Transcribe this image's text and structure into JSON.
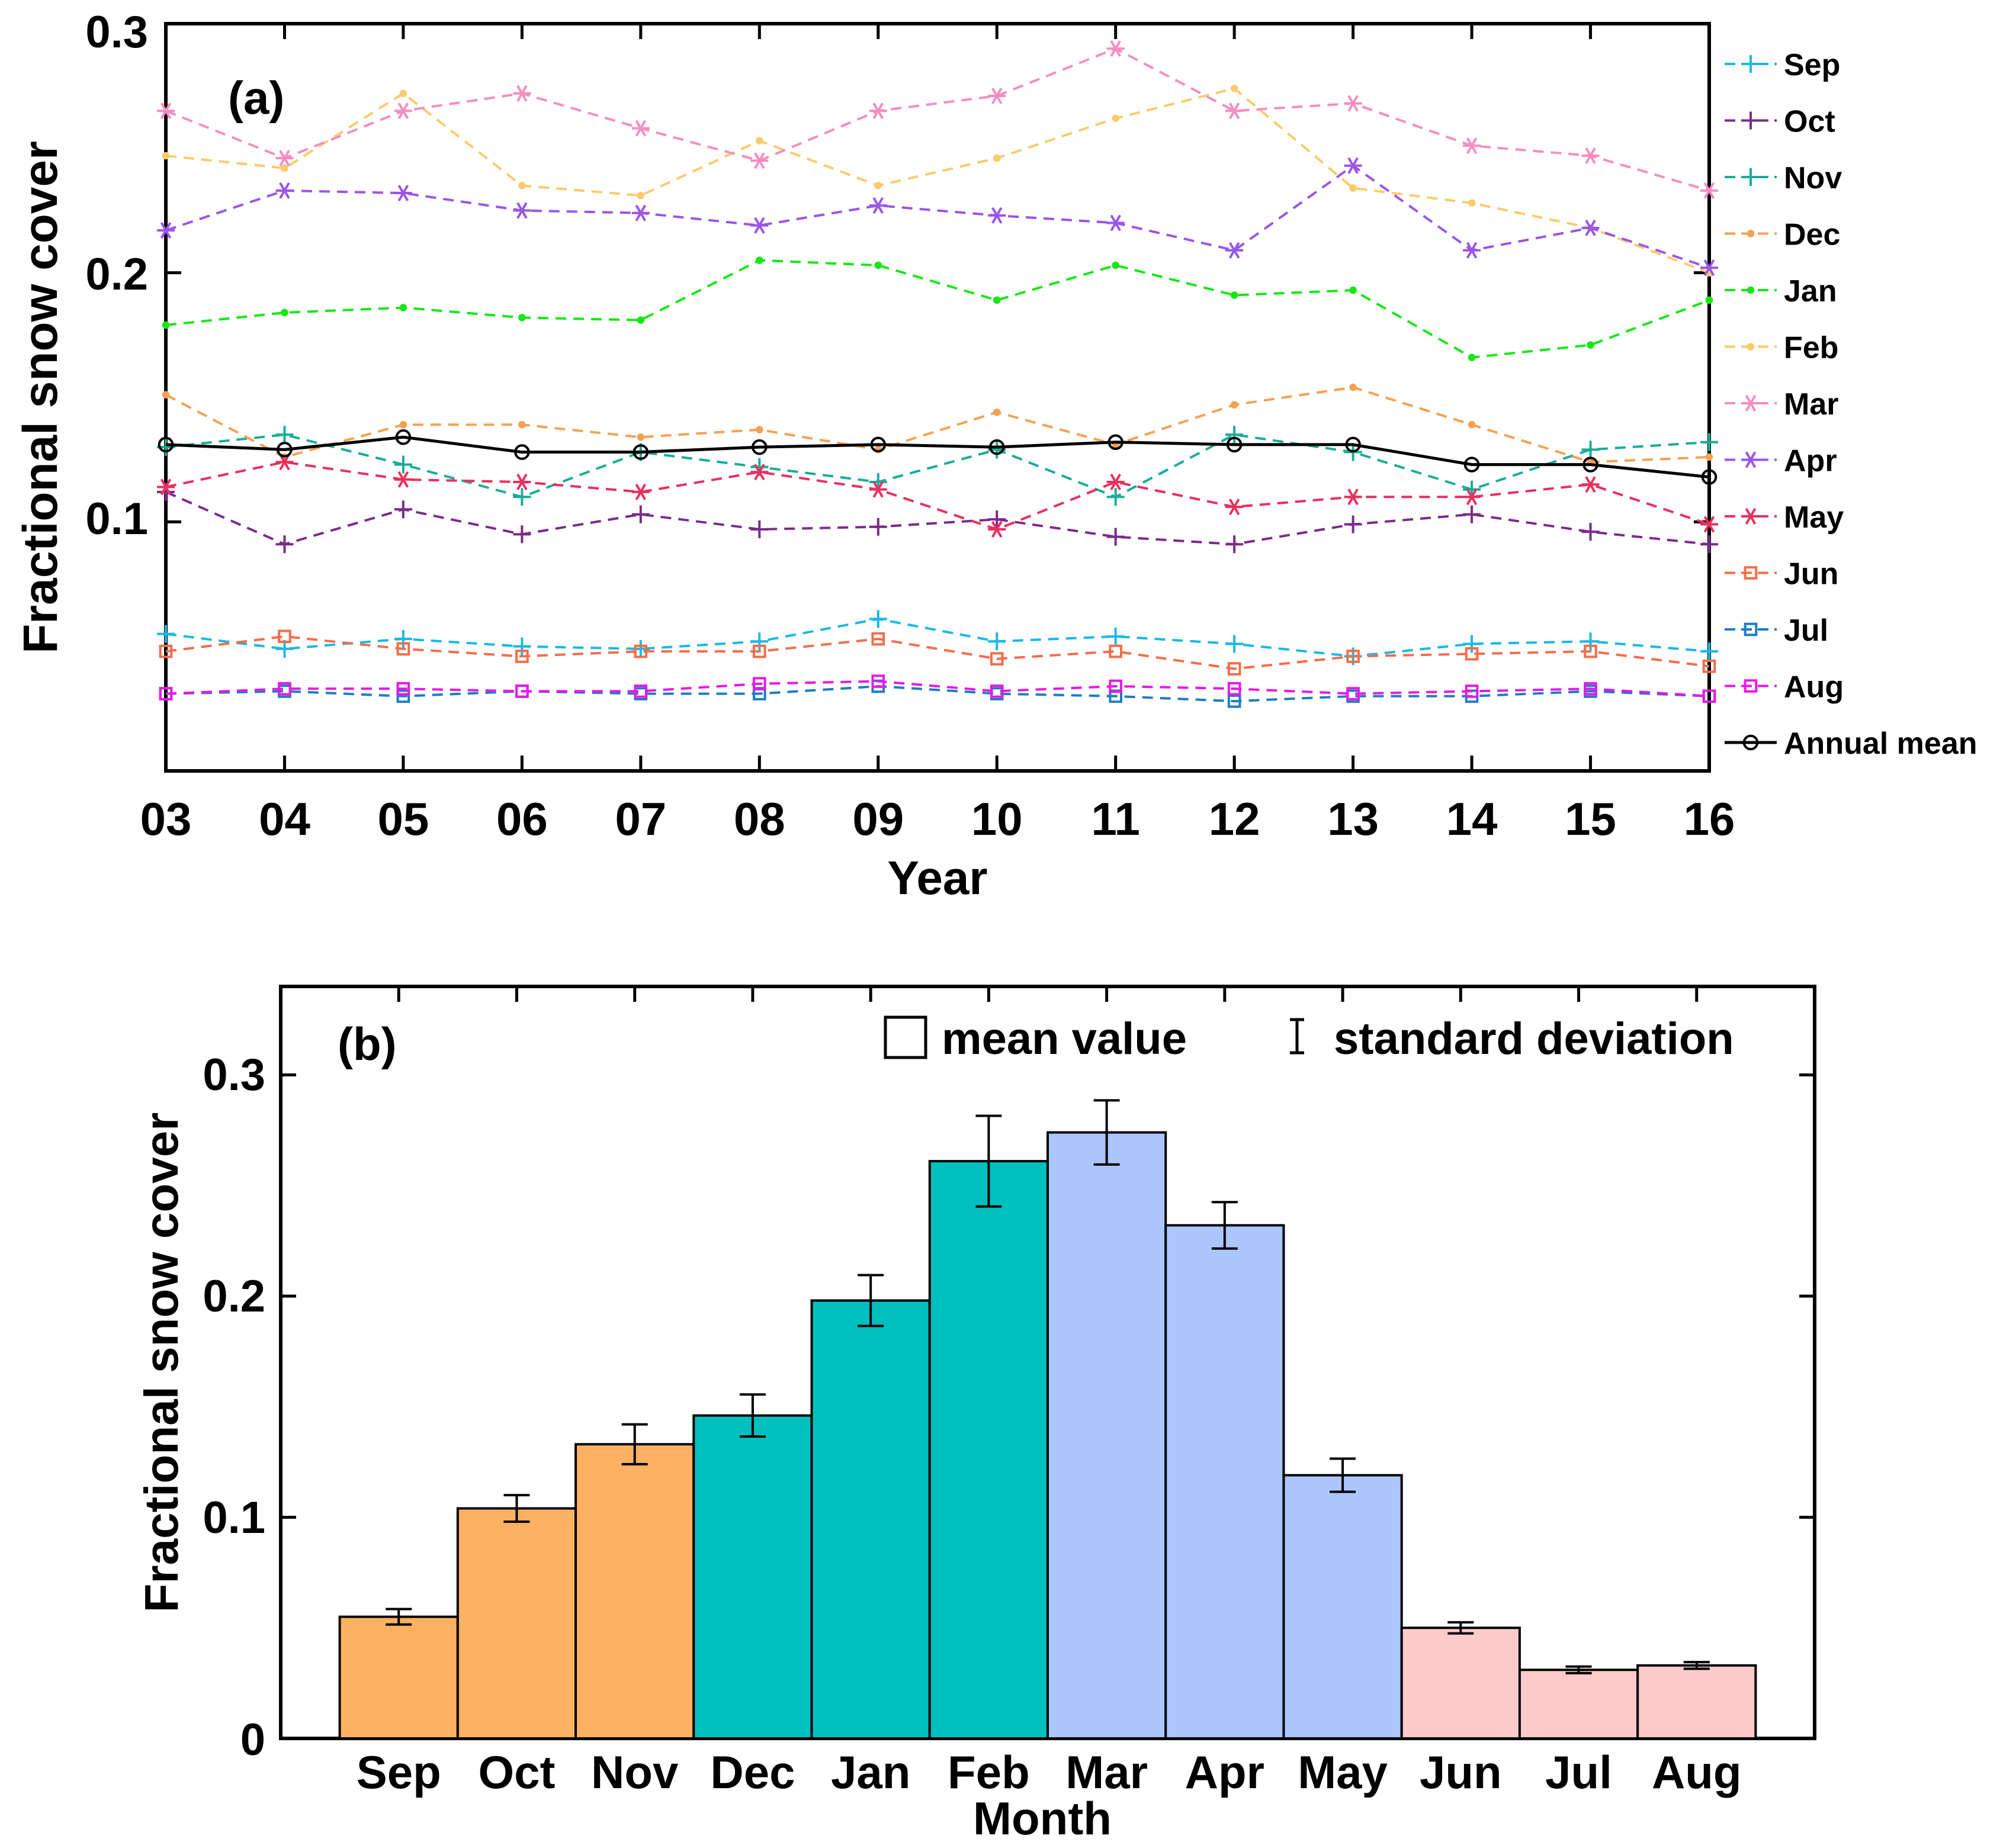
{
  "chart_data": [
    {
      "type": "line",
      "panel_label": "(a)",
      "xlabel": "Year",
      "ylabel": "Fractional snow cover",
      "ylim": [
        0,
        0.3
      ],
      "yticks": [
        0.1,
        0.2,
        0.3
      ],
      "ytick_labels": [
        "0.1",
        "0.2",
        "0.3"
      ],
      "x": [
        3,
        4,
        5,
        6,
        7,
        8,
        9,
        10,
        11,
        12,
        13,
        14,
        15,
        16
      ],
      "x_tick_labels": [
        "03",
        "04",
        "05",
        "06",
        "07",
        "08",
        "09",
        "10",
        "11",
        "12",
        "13",
        "14",
        "15",
        "16"
      ],
      "legend_position": "right outside",
      "series": [
        {
          "name": "Sep",
          "color": "#1ab8e6",
          "marker": "plus",
          "dashed": true,
          "values": [
            0.055,
            0.049,
            0.053,
            0.05,
            0.049,
            0.052,
            0.061,
            0.052,
            0.054,
            0.051,
            0.046,
            0.051,
            0.052,
            0.048
          ]
        },
        {
          "name": "Oct",
          "color": "#7b2a8c",
          "marker": "plus",
          "dashed": true,
          "values": [
            0.112,
            0.091,
            0.105,
            0.095,
            0.103,
            0.097,
            0.098,
            0.101,
            0.094,
            0.091,
            0.099,
            0.103,
            0.096,
            0.091
          ]
        },
        {
          "name": "Nov",
          "color": "#18ad96",
          "marker": "plus",
          "dashed": true,
          "values": [
            0.13,
            0.135,
            0.123,
            0.11,
            0.128,
            0.122,
            0.116,
            0.129,
            0.11,
            0.135,
            0.128,
            0.113,
            0.129,
            0.132
          ]
        },
        {
          "name": "Dec",
          "color": "#f5a153",
          "marker": "dot",
          "dashed": true,
          "values": [
            0.151,
            0.126,
            0.139,
            0.139,
            0.134,
            0.137,
            0.129,
            0.144,
            0.131,
            0.147,
            0.154,
            0.139,
            0.124,
            0.126
          ]
        },
        {
          "name": "Jan",
          "color": "#19e619",
          "marker": "dot",
          "dashed": true,
          "values": [
            0.179,
            0.184,
            0.186,
            0.182,
            0.181,
            0.205,
            0.203,
            0.189,
            0.203,
            0.191,
            0.193,
            0.166,
            0.171,
            0.189
          ]
        },
        {
          "name": "Feb",
          "color": "#fbcb6b",
          "marker": "dot",
          "dashed": true,
          "values": [
            0.247,
            0.242,
            0.272,
            0.235,
            0.231,
            0.253,
            0.235,
            0.246,
            0.262,
            0.274,
            0.234,
            0.228,
            0.218,
            0.2
          ]
        },
        {
          "name": "Mar",
          "color": "#f48ec0",
          "marker": "asterisk",
          "dashed": true,
          "values": [
            0.265,
            0.246,
            0.265,
            0.272,
            0.258,
            0.245,
            0.265,
            0.271,
            0.29,
            0.265,
            0.268,
            0.251,
            0.247,
            0.233
          ]
        },
        {
          "name": "Apr",
          "color": "#9a55e8",
          "marker": "asterisk",
          "dashed": true,
          "values": [
            0.217,
            0.233,
            0.232,
            0.225,
            0.224,
            0.219,
            0.227,
            0.223,
            0.22,
            0.209,
            0.243,
            0.209,
            0.218,
            0.202
          ]
        },
        {
          "name": "May",
          "color": "#e8305e",
          "marker": "asterisk",
          "dashed": true,
          "values": [
            0.114,
            0.124,
            0.117,
            0.116,
            0.112,
            0.12,
            0.113,
            0.097,
            0.116,
            0.106,
            0.11,
            0.11,
            0.115,
            0.099
          ]
        },
        {
          "name": "Jun",
          "color": "#f26e4a",
          "marker": "square",
          "dashed": true,
          "values": [
            0.048,
            0.054,
            0.049,
            0.046,
            0.048,
            0.048,
            0.053,
            0.045,
            0.048,
            0.041,
            0.046,
            0.047,
            0.048,
            0.042
          ]
        },
        {
          "name": "Jul",
          "color": "#1b7ec0",
          "marker": "square",
          "dashed": true,
          "values": [
            0.031,
            0.032,
            0.03,
            0.032,
            0.031,
            0.031,
            0.034,
            0.031,
            0.03,
            0.028,
            0.03,
            0.03,
            0.032,
            0.03
          ]
        },
        {
          "name": "Aug",
          "color": "#e619e6",
          "marker": "square",
          "dashed": true,
          "values": [
            0.031,
            0.033,
            0.033,
            0.032,
            0.032,
            0.035,
            0.036,
            0.032,
            0.034,
            0.033,
            0.031,
            0.032,
            0.033,
            0.03
          ]
        },
        {
          "name": "Annual mean",
          "color": "#000000",
          "marker": "circle",
          "dashed": false,
          "values": [
            0.131,
            0.129,
            0.134,
            0.128,
            0.128,
            0.13,
            0.131,
            0.13,
            0.132,
            0.131,
            0.131,
            0.123,
            0.123,
            0.118
          ]
        }
      ]
    },
    {
      "type": "bar",
      "panel_label": "(b)",
      "xlabel": "Month",
      "ylabel": "Fractional snow cover",
      "ylim": [
        0,
        0.34
      ],
      "yticks": [
        0,
        0.1,
        0.2,
        0.3
      ],
      "ytick_labels": [
        "0",
        "0.1",
        "0.2",
        "0.3"
      ],
      "categories": [
        "Sep",
        "Oct",
        "Nov",
        "Dec",
        "Jan",
        "Feb",
        "Mar",
        "Apr",
        "May",
        "Jun",
        "Jul",
        "Aug"
      ],
      "values": [
        0.055,
        0.104,
        0.133,
        0.146,
        0.198,
        0.261,
        0.274,
        0.232,
        0.119,
        0.05,
        0.031,
        0.033
      ],
      "std": [
        0.0035,
        0.006,
        0.009,
        0.0095,
        0.0115,
        0.0205,
        0.0145,
        0.0105,
        0.0075,
        0.0025,
        0.0015,
        0.0015
      ],
      "bar_colors": [
        "#fdb162",
        "#fdb162",
        "#fdb162",
        "#00c0bf",
        "#00c0bf",
        "#00c0bf",
        "#acc6fe",
        "#acc6fe",
        "#acc6fe",
        "#fdcbcb",
        "#fdcbcb",
        "#fdcbcb"
      ],
      "legend": {
        "mean_label": "mean value",
        "std_label": "standard deviation",
        "position": "top-right"
      }
    }
  ]
}
